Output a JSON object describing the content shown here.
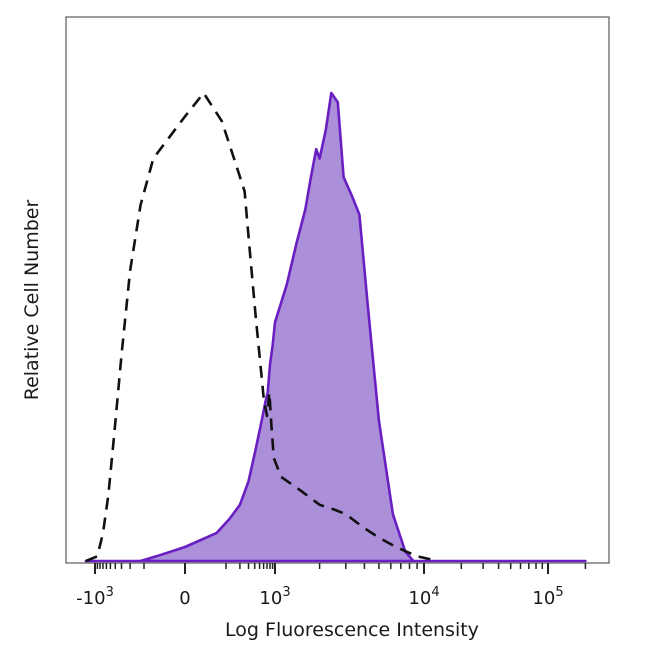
{
  "chart_data": {
    "type": "area",
    "xlabel": "Log Fluorescence Intensity",
    "ylabel": "Relative Cell Number",
    "x_scale": "biexponential",
    "y_scale": "linear",
    "x_ticks": [
      {
        "value": -1000,
        "base": "-10",
        "exp": "3"
      },
      {
        "value": 0,
        "base": "0",
        "exp": ""
      },
      {
        "value": 1000,
        "base": "10",
        "exp": "3"
      },
      {
        "value": 10000,
        "base": "10",
        "exp": "4"
      },
      {
        "value": 100000,
        "base": "10",
        "exp": "5"
      }
    ],
    "minor_ticks": [
      -900,
      -800,
      -700,
      -600,
      -500,
      -400,
      -300,
      -200,
      -100,
      100,
      200,
      300,
      400,
      500,
      600,
      700,
      800,
      900,
      2000,
      3000,
      4000,
      5000,
      6000,
      7000,
      8000,
      9000,
      20000,
      30000,
      40000,
      50000,
      60000,
      70000,
      80000,
      90000,
      200000
    ],
    "ylim": [
      0,
      100
    ],
    "grid": false,
    "legend": "none",
    "series": [
      {
        "style": "dashed-outline",
        "color": "#111111",
        "points": [
          [
            -1500,
            0
          ],
          [
            -900,
            1
          ],
          [
            -700,
            6
          ],
          [
            -550,
            14
          ],
          [
            -420,
            27
          ],
          [
            -300,
            44
          ],
          [
            -200,
            62
          ],
          [
            -120,
            76
          ],
          [
            -60,
            86
          ],
          [
            0,
            95
          ],
          [
            25,
            100
          ],
          [
            80,
            94
          ],
          [
            150,
            86
          ],
          [
            250,
            79
          ],
          [
            320,
            66
          ],
          [
            420,
            52
          ],
          [
            520,
            42
          ],
          [
            600,
            35
          ],
          [
            700,
            31
          ],
          [
            780,
            36
          ],
          [
            850,
            29
          ],
          [
            950,
            22
          ],
          [
            1100,
            18
          ],
          [
            1500,
            15
          ],
          [
            2000,
            12
          ],
          [
            2500,
            11
          ],
          [
            3000,
            10
          ],
          [
            4000,
            7
          ],
          [
            5000,
            5
          ],
          [
            6500,
            3
          ],
          [
            9000,
            1
          ],
          [
            13000,
            0
          ]
        ]
      },
      {
        "style": "filled",
        "color": "#6a1fc2",
        "fill": "#ab8fd8",
        "points": [
          [
            -1500,
            0
          ],
          [
            -120,
            0
          ],
          [
            -50,
            1
          ],
          [
            0,
            3
          ],
          [
            60,
            6
          ],
          [
            120,
            9
          ],
          [
            200,
            12
          ],
          [
            300,
            17
          ],
          [
            420,
            24
          ],
          [
            550,
            30
          ],
          [
            650,
            34
          ],
          [
            720,
            36
          ],
          [
            800,
            42
          ],
          [
            900,
            46
          ],
          [
            1000,
            51
          ],
          [
            1200,
            59
          ],
          [
            1400,
            68
          ],
          [
            1600,
            75
          ],
          [
            1750,
            82
          ],
          [
            1900,
            88
          ],
          [
            2000,
            86
          ],
          [
            2200,
            92
          ],
          [
            2400,
            100
          ],
          [
            2650,
            98
          ],
          [
            2900,
            82
          ],
          [
            3300,
            78
          ],
          [
            3700,
            74
          ],
          [
            4200,
            55
          ],
          [
            5000,
            30
          ],
          [
            6200,
            10
          ],
          [
            7500,
            2
          ],
          [
            8500,
            0
          ],
          [
            110000,
            0
          ],
          [
            200000,
            0
          ]
        ]
      }
    ]
  }
}
